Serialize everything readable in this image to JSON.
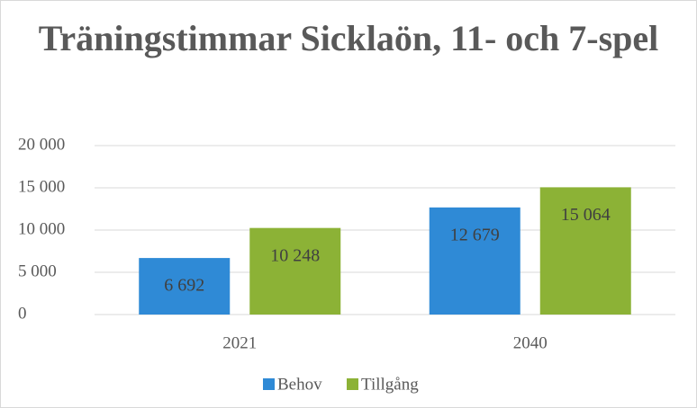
{
  "chart_data": {
    "type": "bar",
    "title": "Träningstimmar Sicklaön, 11- och 7-spel",
    "categories": [
      "2021",
      "2040"
    ],
    "series": [
      {
        "name": "Behov",
        "color": "#2f8ad6",
        "values": [
          6692,
          12679
        ],
        "value_labels": [
          "6 692",
          "12 679"
        ]
      },
      {
        "name": "Tillgång",
        "color": "#8cb236",
        "values": [
          10248,
          15064
        ],
        "value_labels": [
          "10 248",
          "15 064"
        ]
      }
    ],
    "ylim": [
      0,
      20000
    ],
    "yticks": [
      0,
      {
        "value": 5000,
        "label": "5 000"
      },
      {
        "value": 10000,
        "label": "10 000"
      },
      {
        "value": 15000,
        "label": "15 000"
      },
      {
        "value": 20000,
        "label": "20 000"
      }
    ],
    "grid": true,
    "legend": "bottom"
  }
}
